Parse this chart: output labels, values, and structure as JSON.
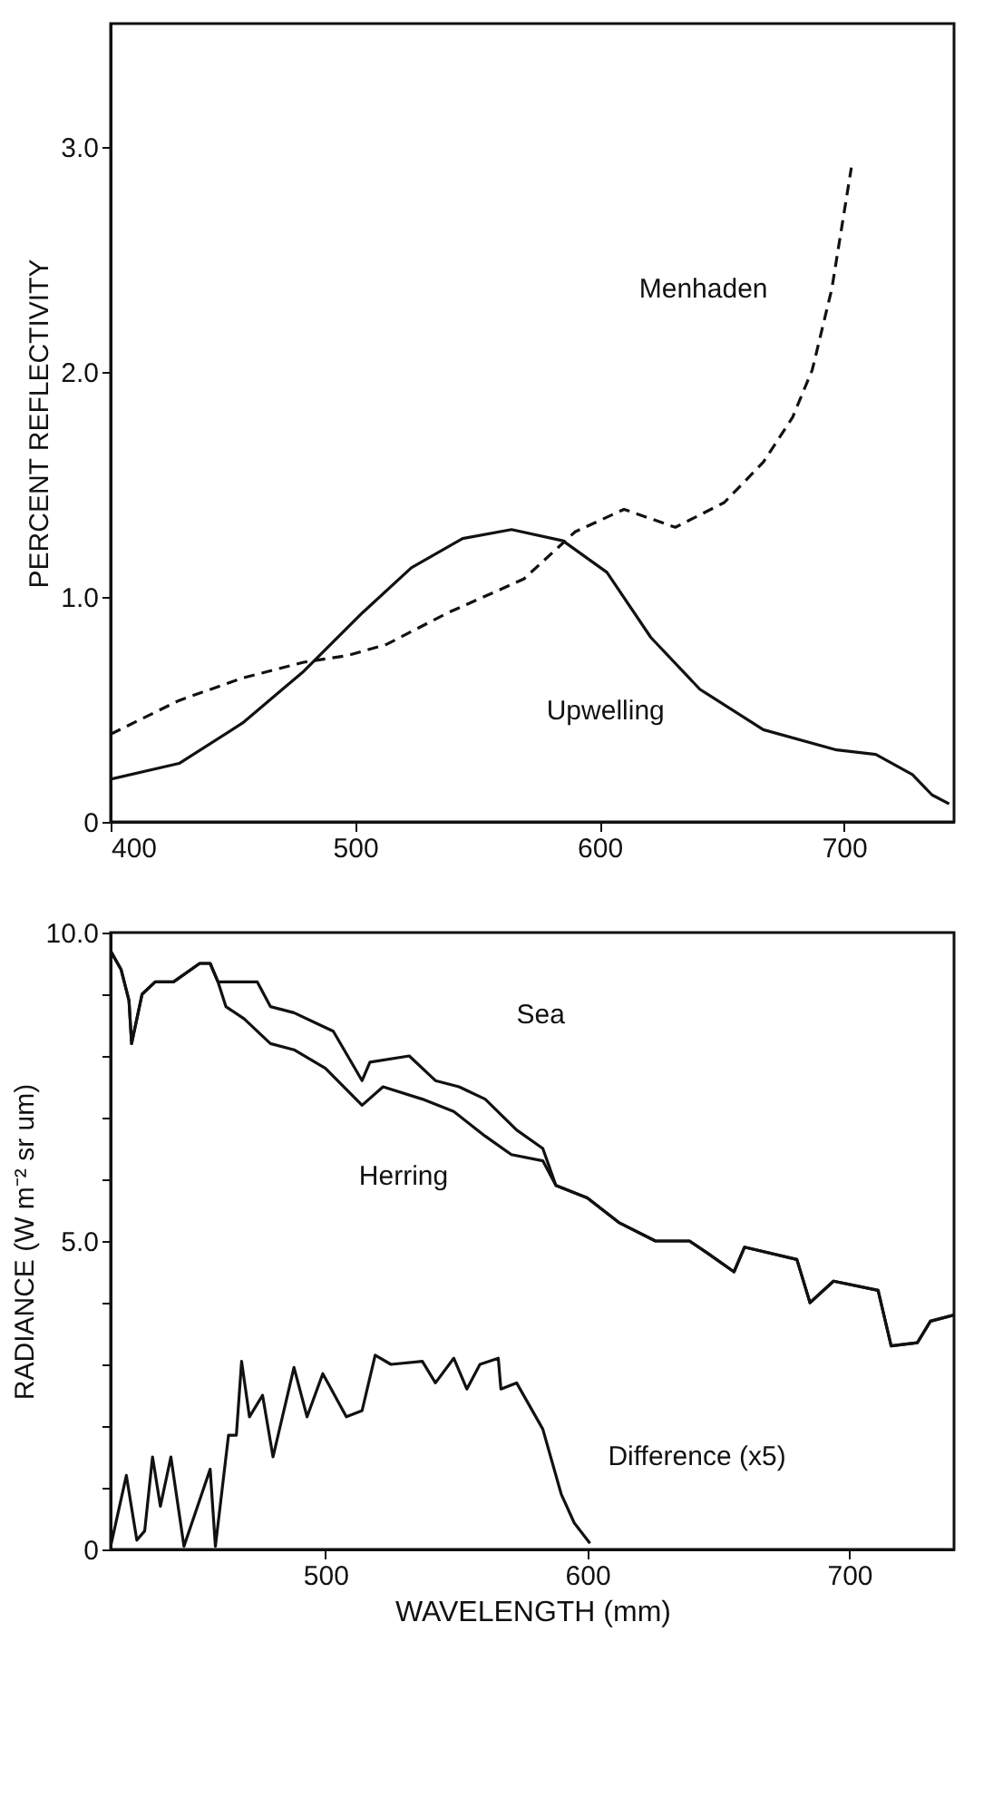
{
  "chart_data": [
    {
      "type": "line",
      "xlabel": null,
      "ylabel": "PERCENT REFLECTIVITY",
      "xlim": [
        400,
        745
      ],
      "ylim": [
        0,
        3.55
      ],
      "xticks": [
        400,
        500,
        600,
        700
      ],
      "yticks": [
        0,
        {
          "value": 1,
          "label": "1.0"
        },
        {
          "value": 2,
          "label": "2.0"
        },
        {
          "value": 3,
          "label": "3.0"
        }
      ],
      "grid": false,
      "series": [
        {
          "name": "Upwelling",
          "color": "#111111",
          "line_style": "solid",
          "x": [
            400,
            428,
            454,
            479,
            503,
            523,
            544,
            564,
            585,
            603,
            621,
            641,
            667,
            697,
            713,
            728,
            736,
            743
          ],
          "values": [
            0.19,
            0.26,
            0.44,
            0.67,
            0.93,
            1.13,
            1.26,
            1.3,
            1.25,
            1.11,
            0.82,
            0.59,
            0.41,
            0.32,
            0.3,
            0.21,
            0.12,
            0.08
          ]
        },
        {
          "name": "Menhaden",
          "color": "#111111",
          "line_style": "dashed",
          "x": [
            400,
            428,
            454,
            479,
            497,
            513,
            538,
            569,
            590,
            610,
            631,
            651,
            667,
            679,
            687,
            695,
            703
          ],
          "values": [
            0.39,
            0.54,
            0.64,
            0.71,
            0.74,
            0.79,
            0.93,
            1.08,
            1.29,
            1.39,
            1.31,
            1.42,
            1.6,
            1.8,
            2.01,
            2.37,
            2.91
          ]
        }
      ]
    },
    {
      "type": "line",
      "xlabel": "WAVELENGTH (mm)",
      "ylabel": "RADIANCE (W m⁻² sr um)",
      "xlim": [
        418,
        740
      ],
      "ylim": [
        0,
        10
      ],
      "xticks": [
        500,
        600,
        700
      ],
      "yticks": [
        0,
        {
          "value": 1,
          "label": null
        },
        {
          "value": 2,
          "label": null
        },
        {
          "value": 3,
          "label": null
        },
        {
          "value": 4,
          "label": null
        },
        {
          "value": 5,
          "label": "5.0"
        },
        {
          "value": 6,
          "label": null
        },
        {
          "value": 7,
          "label": null
        },
        {
          "value": 8,
          "label": null
        },
        {
          "value": 9,
          "label": null
        },
        {
          "value": 10,
          "label": "10.0"
        }
      ],
      "grid": false,
      "series": [
        {
          "name": "Sea",
          "color": "#111111",
          "line_style": "solid",
          "x": [
            418,
            422,
            425,
            426,
            430,
            435,
            442,
            452,
            456,
            459,
            474,
            479,
            488,
            498,
            503,
            514,
            517,
            532,
            542,
            551,
            561,
            573,
            583,
            588,
            600,
            612,
            626,
            639,
            646,
            656,
            660,
            680,
            685,
            694,
            711,
            716,
            726,
            731,
            740
          ],
          "values": [
            9.7,
            9.4,
            8.9,
            8.2,
            9.0,
            9.2,
            9.2,
            9.5,
            9.5,
            9.2,
            9.2,
            8.8,
            8.7,
            8.5,
            8.4,
            7.6,
            7.9,
            8.0,
            7.6,
            7.5,
            7.3,
            6.8,
            6.5,
            5.9,
            5.7,
            5.3,
            5.0,
            5.0,
            4.8,
            4.5,
            4.9,
            4.7,
            4.0,
            4.35,
            4.2,
            3.3,
            3.35,
            3.7,
            3.8
          ]
        },
        {
          "name": "Herring",
          "color": "#111111",
          "line_style": "solid",
          "x": [
            418,
            422,
            425,
            426,
            430,
            435,
            442,
            452,
            456,
            459,
            462,
            469,
            479,
            488,
            500,
            514,
            522,
            537,
            549,
            561,
            571,
            583,
            588,
            600,
            612,
            626,
            639,
            646,
            656,
            660,
            680,
            685,
            694,
            711,
            716,
            726,
            731,
            740
          ],
          "values": [
            9.7,
            9.4,
            8.9,
            8.2,
            9.0,
            9.2,
            9.2,
            9.5,
            9.5,
            9.2,
            8.8,
            8.6,
            8.2,
            8.1,
            7.8,
            7.2,
            7.5,
            7.3,
            7.1,
            6.7,
            6.4,
            6.3,
            5.9,
            5.7,
            5.3,
            5.0,
            5.0,
            4.8,
            4.5,
            4.9,
            4.7,
            4.0,
            4.35,
            4.2,
            3.3,
            3.35,
            3.7,
            3.8
          ]
        },
        {
          "name": "Difference (x5)",
          "color": "#111111",
          "line_style": "solid",
          "x": [
            418,
            424,
            428,
            431,
            434,
            437,
            441,
            446,
            456,
            458,
            463,
            466,
            468,
            471,
            476,
            480,
            488,
            493,
            499,
            508,
            514,
            519,
            525,
            537,
            542,
            549,
            554,
            559,
            566,
            567,
            573,
            583,
            590,
            595,
            601
          ],
          "values": [
            0.05,
            1.2,
            0.15,
            0.3,
            1.5,
            0.7,
            1.5,
            0.05,
            1.3,
            0.05,
            1.85,
            1.85,
            3.05,
            2.15,
            2.5,
            1.5,
            2.95,
            2.15,
            2.85,
            2.15,
            2.25,
            3.15,
            3.0,
            3.05,
            2.7,
            3.1,
            2.6,
            3.0,
            3.1,
            2.6,
            2.7,
            1.95,
            0.9,
            0.43,
            0.1
          ]
        }
      ]
    }
  ]
}
